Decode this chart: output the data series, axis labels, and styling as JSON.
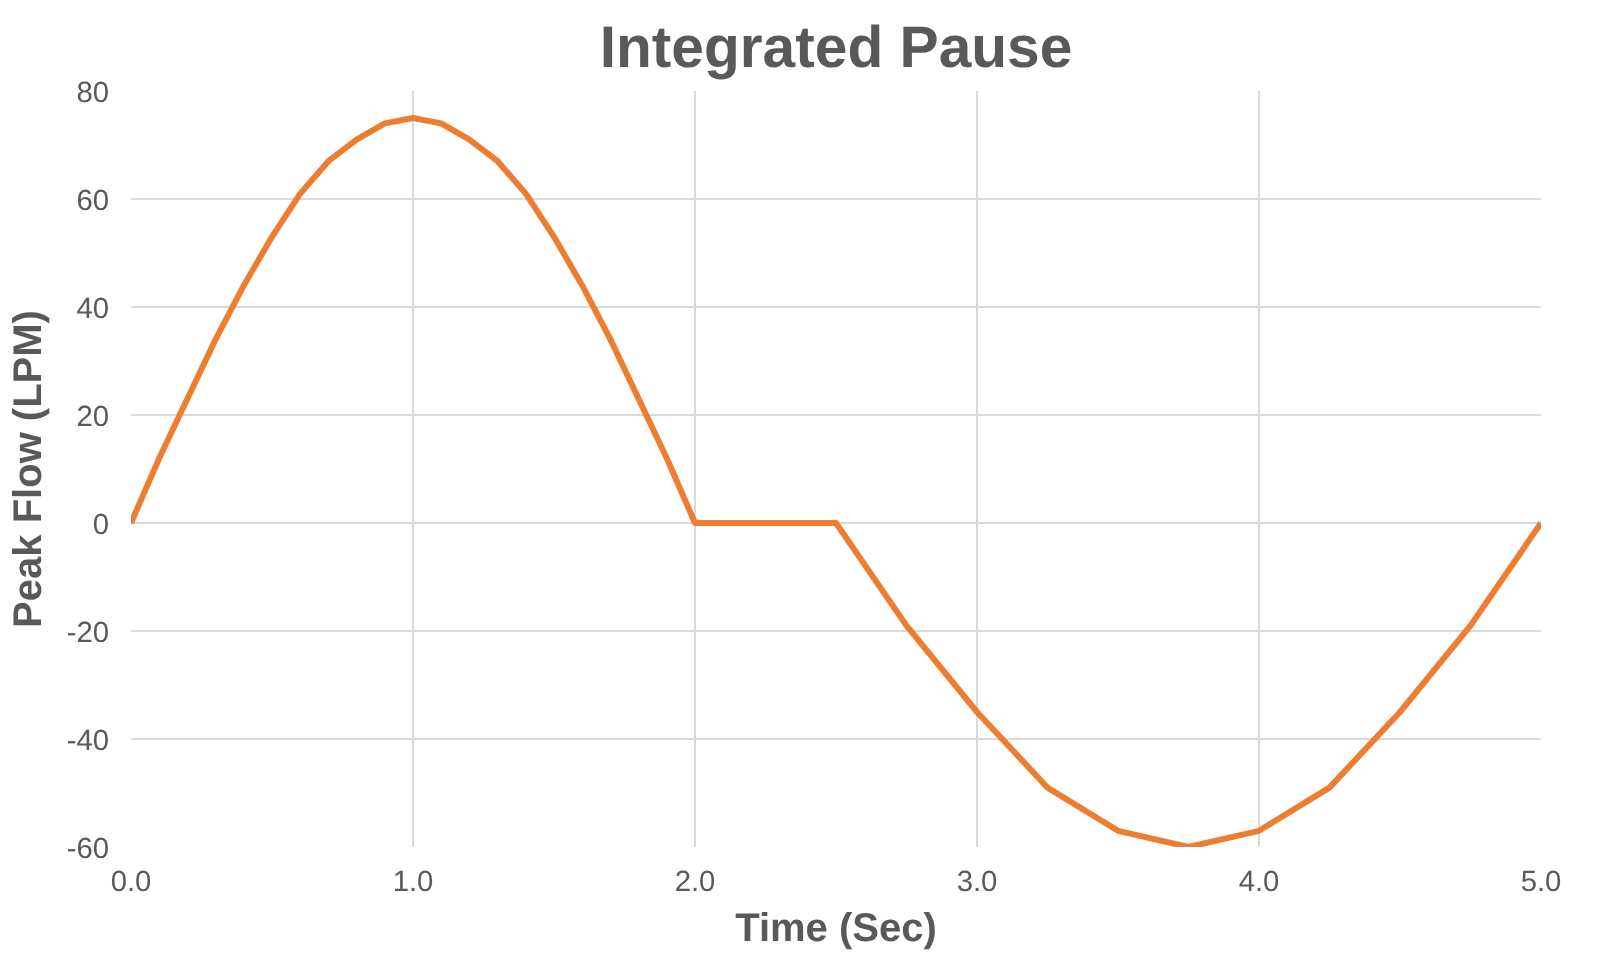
{
  "chart_data": {
    "type": "line",
    "title": "Integrated Pause",
    "xlabel": "Time (Sec)",
    "ylabel": "Peak Flow (LPM)",
    "series": [
      {
        "color": "#ed7d31",
        "x": [
          0,
          0.1,
          0.2,
          0.3,
          0.4,
          0.5,
          0.6,
          0.7,
          0.8,
          0.9,
          1.0,
          1.1,
          1.2,
          1.3,
          1.4,
          1.5,
          1.6,
          1.7,
          1.8,
          1.9,
          2.0,
          2.5,
          2.75,
          3.0,
          3.25,
          3.5,
          3.75,
          4.0,
          4.25,
          4.5,
          4.75,
          5.0
        ],
        "values": [
          0,
          12,
          23,
          34,
          44,
          53,
          61,
          67,
          71,
          74,
          75,
          74,
          71,
          67,
          61,
          53,
          44,
          34,
          23,
          12,
          0,
          0,
          -19,
          -35,
          -49,
          -57,
          -60,
          -57,
          -49,
          -35,
          -19,
          0
        ]
      }
    ],
    "xlim": [
      0,
      5
    ],
    "ylim": [
      -60,
      80
    ],
    "xticks": [
      {
        "value": 0,
        "label": "0.0"
      },
      {
        "value": 1,
        "label": "1.0"
      },
      {
        "value": 2,
        "label": "2.0"
      },
      {
        "value": 3,
        "label": "3.0"
      },
      {
        "value": 4,
        "label": "4.0"
      },
      {
        "value": 5,
        "label": "5.0"
      }
    ],
    "yticks": [
      -60,
      -40,
      -20,
      0,
      20,
      40,
      60,
      80
    ],
    "grid": true,
    "line_style": "solid"
  }
}
